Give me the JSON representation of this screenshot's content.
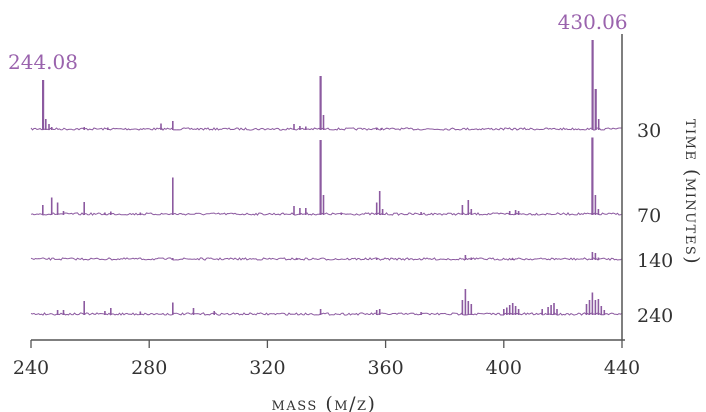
{
  "chart_data": {
    "type": "line",
    "title": "",
    "xlabel": "mass (m/z)",
    "ylabel": "time (minutes)",
    "xlim": [
      240,
      440
    ],
    "xticks": [
      240,
      280,
      320,
      360,
      400,
      440
    ],
    "grid": false,
    "legend": "none",
    "colors": {
      "trace": "#8c5aa0",
      "axis": "#555555",
      "label": "#333333",
      "peak_label": "#9a63ad"
    },
    "series": [
      {
        "name": "30",
        "peaks": [
          [
            244.08,
            1.0
          ],
          [
            245.0,
            0.22
          ],
          [
            246.1,
            0.12
          ],
          [
            247.0,
            0.06
          ],
          [
            258.0,
            0.06
          ],
          [
            266.0,
            0.05
          ],
          [
            284.0,
            0.13
          ],
          [
            288.0,
            0.18
          ],
          [
            329.0,
            0.12
          ],
          [
            331.0,
            0.08
          ],
          [
            333.0,
            0.07
          ],
          [
            338.0,
            1.08
          ],
          [
            339.0,
            0.3
          ],
          [
            357.0,
            0.05
          ],
          [
            358.5,
            0.04
          ],
          [
            430.06,
            1.8
          ],
          [
            431.1,
            0.82
          ],
          [
            432.1,
            0.22
          ]
        ]
      },
      {
        "name": "70",
        "peaks": [
          [
            244.0,
            0.2
          ],
          [
            247.0,
            0.35
          ],
          [
            249.0,
            0.25
          ],
          [
            251.0,
            0.08
          ],
          [
            258.0,
            0.26
          ],
          [
            265.0,
            0.05
          ],
          [
            267.0,
            0.07
          ],
          [
            277.0,
            0.05
          ],
          [
            288.0,
            0.75
          ],
          [
            329.0,
            0.18
          ],
          [
            331.0,
            0.14
          ],
          [
            333.0,
            0.14
          ],
          [
            338.0,
            1.5
          ],
          [
            339.0,
            0.4
          ],
          [
            345.0,
            0.05
          ],
          [
            357.0,
            0.25
          ],
          [
            358.0,
            0.48
          ],
          [
            359.0,
            0.12
          ],
          [
            372.0,
            0.06
          ],
          [
            386.0,
            0.2
          ],
          [
            388.0,
            0.3
          ],
          [
            389.0,
            0.12
          ],
          [
            402.0,
            0.08
          ],
          [
            404.0,
            0.1
          ],
          [
            405.0,
            0.08
          ],
          [
            430.0,
            1.55
          ],
          [
            431.0,
            0.4
          ],
          [
            432.0,
            0.12
          ]
        ]
      },
      {
        "name": "140",
        "peaks": [
          [
            288.0,
            0.04
          ],
          [
            330.0,
            0.03
          ],
          [
            357.0,
            0.04
          ],
          [
            387.0,
            0.1
          ],
          [
            389.0,
            0.05
          ],
          [
            403.0,
            0.03
          ],
          [
            430.0,
            0.16
          ],
          [
            431.0,
            0.14
          ],
          [
            432.0,
            0.05
          ]
        ]
      },
      {
        "name": "240",
        "peaks": [
          [
            249.0,
            0.1
          ],
          [
            251.0,
            0.1
          ],
          [
            258.0,
            0.28
          ],
          [
            265.0,
            0.08
          ],
          [
            267.0,
            0.14
          ],
          [
            277.0,
            0.07
          ],
          [
            288.0,
            0.25
          ],
          [
            295.0,
            0.14
          ],
          [
            302.0,
            0.08
          ],
          [
            338.0,
            0.12
          ],
          [
            357.0,
            0.1
          ],
          [
            358.0,
            0.12
          ],
          [
            372.0,
            0.06
          ],
          [
            386.0,
            0.3
          ],
          [
            387.0,
            0.52
          ],
          [
            388.0,
            0.28
          ],
          [
            389.0,
            0.22
          ],
          [
            400.0,
            0.12
          ],
          [
            401.0,
            0.15
          ],
          [
            402.0,
            0.2
          ],
          [
            403.0,
            0.24
          ],
          [
            404.0,
            0.18
          ],
          [
            405.0,
            0.12
          ],
          [
            413.0,
            0.12
          ],
          [
            415.0,
            0.16
          ],
          [
            416.0,
            0.2
          ],
          [
            417.0,
            0.24
          ],
          [
            418.0,
            0.12
          ],
          [
            428.0,
            0.22
          ],
          [
            429.0,
            0.3
          ],
          [
            430.0,
            0.45
          ],
          [
            431.0,
            0.3
          ],
          [
            432.0,
            0.32
          ],
          [
            433.0,
            0.18
          ],
          [
            434.0,
            0.1
          ]
        ]
      }
    ],
    "annotations": [
      {
        "text": "244.08",
        "x": 244.08,
        "series": "30"
      },
      {
        "text": "430.06",
        "x": 430.06,
        "series": "30"
      }
    ]
  }
}
